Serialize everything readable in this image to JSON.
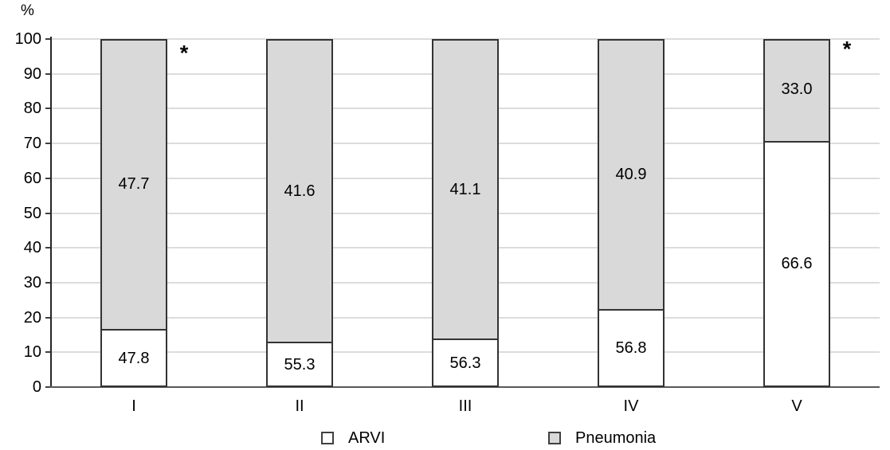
{
  "chart_data": {
    "type": "bar",
    "stacked": true,
    "title": "",
    "ylabel": "%",
    "xlabel": "",
    "ylim": [
      0,
      100
    ],
    "ytick_step": 10,
    "ytick_labels": [
      "0",
      "10",
      "20",
      "30",
      "40",
      "50",
      "60",
      "70",
      "80",
      "90",
      "100"
    ],
    "grid": "horizontal",
    "legend_position": "bottom",
    "categories": [
      "I",
      "II",
      "III",
      "IV",
      "V"
    ],
    "series": [
      {
        "name": "ARVI",
        "color": "#ffffff",
        "values": [
          47.8,
          55.3,
          56.3,
          56.8,
          66.6
        ],
        "labels": [
          "47.8",
          "55.3",
          "56.3",
          "56.8",
          "66.6"
        ]
      },
      {
        "name": "Pneumonia",
        "color": "#d9d9d9",
        "values": [
          47.7,
          41.6,
          41.1,
          40.9,
          33.0
        ],
        "labels": [
          "47.7",
          "41.6",
          "41.1",
          "40.9",
          "33.0"
        ]
      }
    ],
    "segment_split_pct_visual": [
      16.5,
      12.6,
      13.7,
      22.2,
      71.0
    ],
    "annotations": [
      {
        "text": "*",
        "category": "I",
        "y_pct": 96.3
      },
      {
        "text": "*",
        "category": "V",
        "y_pct": 97.5
      }
    ]
  }
}
